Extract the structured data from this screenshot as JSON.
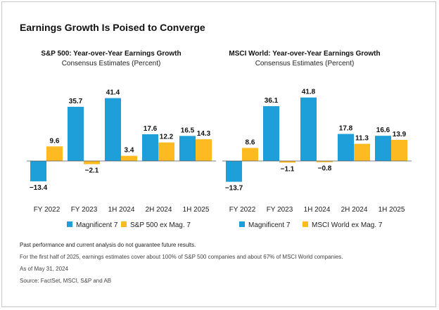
{
  "title": "Earnings Growth Is Poised to Converge",
  "colors": {
    "mag7": "#1E9FD9",
    "ex_mag7": "#FDBA21"
  },
  "chart_data": [
    {
      "type": "bar",
      "title": "S&P 500: Year-over-Year Earnings Growth",
      "subtitle": "Consensus Estimates (Percent)",
      "categories": [
        "FY 2022",
        "FY 2023",
        "1H 2024",
        "2H 2024",
        "1H 2025"
      ],
      "series": [
        {
          "name": "Magnificent 7",
          "values": [
            -13.4,
            35.7,
            41.4,
            17.6,
            16.5
          ],
          "labels": [
            "−13.4",
            "35.7",
            "41.4",
            "17.6",
            "16.5"
          ]
        },
        {
          "name": "S&P 500 ex Mag. 7",
          "values": [
            9.6,
            -2.1,
            3.4,
            12.2,
            14.3
          ],
          "labels": [
            "9.6",
            "−2.1",
            "3.4",
            "12.2",
            "14.3"
          ]
        }
      ],
      "xlabel": "",
      "ylabel": "",
      "ylim": [
        -14,
        42
      ],
      "grid": false,
      "legend": "bottom"
    },
    {
      "type": "bar",
      "title": "MSCI World: Year-over-Year Earnings Growth",
      "subtitle": "Consensus Estimates (Percent)",
      "categories": [
        "FY 2022",
        "FY 2023",
        "1H 2024",
        "2H 2024",
        "1H 2025"
      ],
      "series": [
        {
          "name": "Magnificent 7",
          "values": [
            -13.7,
            36.1,
            41.8,
            17.8,
            16.6
          ],
          "labels": [
            "−13.7",
            "36.1",
            "41.8",
            "17.8",
            "16.6"
          ]
        },
        {
          "name": "MSCI World ex Mag. 7",
          "values": [
            8.6,
            -1.1,
            -0.8,
            11.3,
            13.9
          ],
          "labels": [
            "8.6",
            "−1.1",
            "−0.8",
            "11.3",
            "13.9"
          ]
        }
      ],
      "xlabel": "",
      "ylabel": "",
      "ylim": [
        -14,
        42
      ],
      "grid": false,
      "legend": "bottom"
    }
  ],
  "footer": {
    "disclaimer": "Past performance and current analysis do not guarantee future results.",
    "note": "For the first half of 2025, earnings estimates cover about 100% of S&P 500 companies and about 67% of MSCI World companies.",
    "as_of": "As of May 31, 2024",
    "source": "Source: FactSet, MSCI, S&P and AB"
  }
}
